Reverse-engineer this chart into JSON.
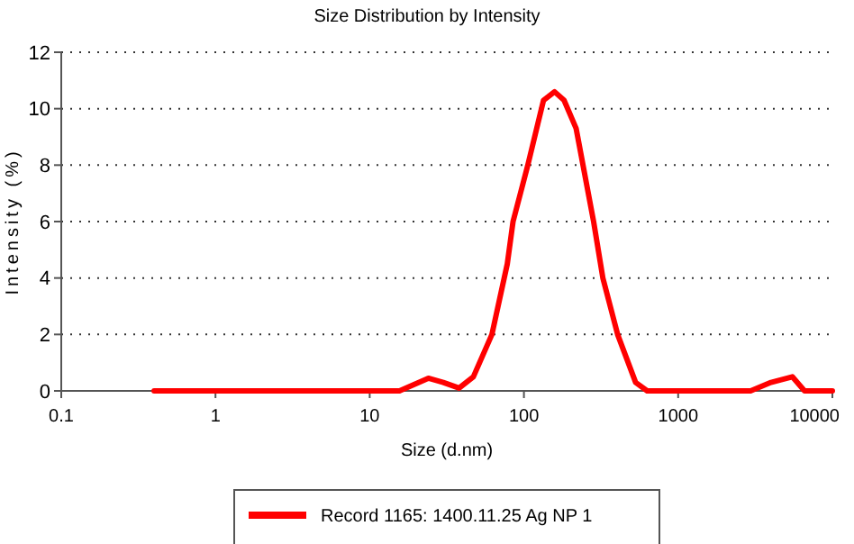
{
  "chart_data": {
    "type": "line",
    "title": "Size Distribution by Intensity",
    "xlabel": "Size (d.nm)",
    "ylabel": "Intensity (%)",
    "log": "x",
    "xlim": [
      0.1,
      10000
    ],
    "xticks": [
      0.1,
      1,
      10,
      100,
      1000,
      10000
    ],
    "ylim": [
      0,
      12
    ],
    "yticks": [
      0,
      2,
      4,
      6,
      8,
      10,
      12
    ],
    "grid": "y",
    "legend": "bottom",
    "marker": "none",
    "line_style": "solid",
    "series": [
      {
        "name": "Record 1165: 1400.11.25 Ag NP 1",
        "color": "#ff0000",
        "x": [
          0.4,
          1,
          5,
          15.6,
          24,
          30,
          38,
          47,
          62,
          78,
          85,
          106,
          134,
          158,
          182,
          218,
          283,
          325,
          405,
          530,
          630,
          1000,
          2950,
          4000,
          5500,
          6600,
          10000
        ],
        "values": [
          0,
          0,
          0,
          0,
          0.45,
          0.3,
          0.1,
          0.5,
          2,
          4.5,
          6,
          8,
          10.3,
          10.6,
          10.3,
          9.3,
          6,
          4,
          2,
          0.3,
          0,
          0,
          0,
          0.3,
          0.5,
          0,
          0
        ]
      }
    ]
  }
}
